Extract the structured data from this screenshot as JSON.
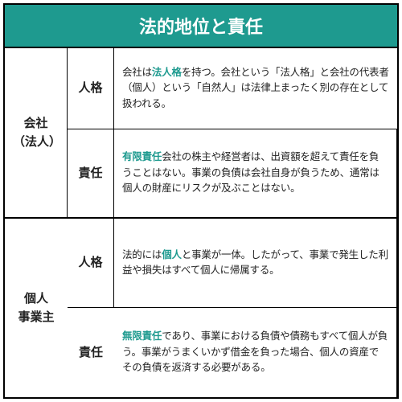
{
  "title": "法的地位と責任",
  "colors": {
    "accent": "#1e9a8f",
    "border": "#000000",
    "text": "#222222",
    "background": "#ffffff"
  },
  "groups": [
    {
      "label": "会社\n（法人）",
      "rows": [
        {
          "sub": "人格",
          "highlight": "法人格",
          "desc_before": "会社は",
          "desc_after": "を持つ。会社という「法人格」と会社の代表者（個人）という「自然人」は法律上まったく別の存在として扱われる。"
        },
        {
          "sub": "責任",
          "highlight": "有限責任",
          "desc_before": "",
          "desc_after": "会社の株主や経営者は、出資額を超えて責任を負うことはない。事業の負債は会社自身が負うため、通常は個人の財産にリスクが及ぶことはない。"
        }
      ]
    },
    {
      "label": "個人\n事業主",
      "rows": [
        {
          "sub": "人格",
          "highlight": "個人",
          "desc_before": "法的には",
          "desc_after": "と事業が一体。したがって、事業で発生した利益や損失はすべて個人に帰属する。"
        },
        {
          "sub": "責任",
          "highlight": "無限責任",
          "desc_before": "",
          "desc_after": "であり、事業における負債や債務もすべて個人が負う。事業がうまくいかず借金を負った場合、個人の資産でその負債を返済する必要がある。"
        }
      ]
    }
  ]
}
